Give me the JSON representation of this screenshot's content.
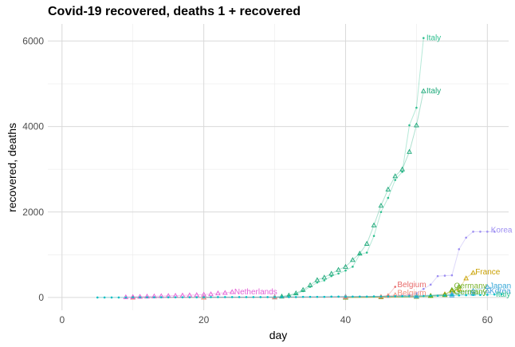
{
  "chart_data": {
    "type": "line",
    "title": "Covid-19 recovered, deaths 1 + recovered",
    "xlabel": "day",
    "ylabel": "recovered, deaths",
    "xlim": [
      -2,
      63
    ],
    "ylim": [
      -300,
      6400
    ],
    "x_ticks": [
      0,
      20,
      40,
      60
    ],
    "y_ticks": [
      0,
      2000,
      4000,
      6000
    ],
    "grid": true,
    "legend": "none",
    "series": [
      {
        "name": "Italy",
        "metric": "recovered",
        "color": "#2ebf8f",
        "marker": "point",
        "x": [
          30,
          31,
          32,
          33,
          34,
          35,
          36,
          37,
          38,
          39,
          40,
          41,
          42,
          43,
          44,
          45,
          46,
          47,
          48,
          49,
          50,
          51
        ],
        "y": [
          2,
          20,
          40,
          80,
          150,
          250,
          350,
          400,
          500,
          560,
          630,
          720,
          1010,
          1050,
          1440,
          2000,
          2330,
          2750,
          2940,
          4030,
          4440,
          6070
        ]
      },
      {
        "name": "Italy",
        "metric": "deaths + recovered",
        "color": "#1aa878",
        "marker": "triangle",
        "x": [
          30,
          31,
          32,
          33,
          34,
          35,
          36,
          37,
          38,
          39,
          40,
          41,
          42,
          43,
          44,
          45,
          46,
          47,
          48,
          49,
          50,
          51
        ],
        "y": [
          5,
          25,
          50,
          100,
          180,
          290,
          410,
          470,
          560,
          650,
          720,
          880,
          1030,
          1260,
          1690,
          2150,
          2530,
          2840,
          3000,
          3410,
          4030,
          4830
        ]
      },
      {
        "name": "Korea",
        "metric": "recovered",
        "color": "#9d8ef2",
        "marker": "point",
        "x": [
          46,
          47,
          48,
          49,
          50,
          51,
          52,
          53,
          54,
          55,
          56,
          57,
          58,
          59,
          60,
          61
        ],
        "y": [
          20,
          30,
          40,
          60,
          100,
          200,
          300,
          500,
          510,
          520,
          1130,
          1400,
          1540,
          1540,
          1540,
          1540
        ]
      },
      {
        "name": "France",
        "metric": "deaths + recovered",
        "color": "#c9a000",
        "marker": "triangle",
        "x": [
          40,
          45,
          50,
          52,
          54,
          55,
          56,
          57,
          58
        ],
        "y": [
          0,
          10,
          20,
          40,
          80,
          150,
          200,
          450,
          580
        ]
      },
      {
        "name": "Germany",
        "metric": "recovered",
        "color": "#7bb32e",
        "marker": "point",
        "x": [
          40,
          45,
          50,
          52,
          54,
          55,
          56
        ],
        "y": [
          0,
          5,
          10,
          20,
          40,
          80,
          150
        ]
      },
      {
        "name": "Germany",
        "metric": "deaths + recovered",
        "color": "#56a810",
        "marker": "triangle",
        "x": [
          40,
          45,
          50,
          52,
          54,
          55,
          56
        ],
        "y": [
          0,
          10,
          20,
          40,
          60,
          180,
          260
        ]
      },
      {
        "name": "Japan",
        "metric": "deaths + recovered",
        "color": "#38a8d8",
        "marker": "triangle",
        "x": [
          20,
          30,
          40,
          50,
          55,
          58,
          60
        ],
        "y": [
          0,
          10,
          20,
          40,
          80,
          160,
          250
        ]
      },
      {
        "name": "Korea",
        "metric": "deaths + recovered",
        "color": "#4aa3df",
        "marker": "triangle",
        "x": [
          20,
          30,
          40,
          50,
          55,
          58,
          60
        ],
        "y": [
          0,
          10,
          20,
          30,
          50,
          90,
          150
        ]
      },
      {
        "name": "Belgium",
        "metric": "recovered",
        "color": "#e86a6a",
        "marker": "point",
        "x": [
          10,
          20,
          30,
          40,
          45,
          46,
          47
        ],
        "y": [
          0,
          0,
          5,
          10,
          20,
          50,
          250
        ]
      },
      {
        "name": "Belgium",
        "metric": "deaths + recovered",
        "color": "#f08c78",
        "marker": "triangle",
        "x": [
          10,
          20,
          30,
          40,
          45,
          46,
          47
        ],
        "y": [
          0,
          0,
          5,
          10,
          20,
          40,
          60
        ]
      },
      {
        "name": "Netherlands",
        "metric": "deaths + recovered",
        "color": "#e25fd5",
        "marker": "triangle",
        "x": [
          9,
          10,
          11,
          12,
          13,
          14,
          15,
          16,
          17,
          18,
          19,
          20,
          21,
          22,
          23,
          24
        ],
        "y": [
          10,
          15,
          20,
          25,
          30,
          35,
          40,
          45,
          50,
          55,
          60,
          70,
          80,
          100,
          110,
          130
        ]
      },
      {
        "name": "",
        "metric": "baseline",
        "color": "#00bfc4",
        "marker": "point",
        "x": [
          5,
          6,
          7,
          8,
          9,
          10,
          11,
          12,
          13,
          14,
          15,
          16,
          17,
          18,
          19,
          20,
          21,
          22,
          23,
          24,
          25,
          26,
          27,
          28,
          29,
          30,
          31,
          32,
          33,
          34,
          35,
          36,
          37,
          38,
          39,
          40,
          41,
          42,
          43,
          44,
          45,
          46,
          47,
          48,
          49,
          50,
          51,
          52,
          53,
          54,
          55,
          56,
          57,
          58,
          59,
          60,
          61,
          62
        ],
        "y": [
          0,
          0,
          0,
          0,
          0,
          5,
          5,
          5,
          5,
          5,
          5,
          5,
          5,
          5,
          5,
          5,
          10,
          10,
          10,
          10,
          10,
          10,
          10,
          10,
          10,
          10,
          10,
          10,
          10,
          15,
          15,
          15,
          15,
          20,
          20,
          20,
          20,
          20,
          20,
          25,
          25,
          25,
          30,
          30,
          30,
          35,
          35,
          40,
          40,
          45,
          50,
          50,
          55,
          60,
          60,
          65,
          70,
          75
        ]
      }
    ],
    "annotations": [
      {
        "text": "Italy",
        "x": 51.4,
        "y": 6070,
        "color": "#2ebf8f"
      },
      {
        "text": "Italy",
        "x": 51.4,
        "y": 4830,
        "color": "#1aa878"
      },
      {
        "text": "Korea",
        "x": 60.5,
        "y": 1580,
        "color": "#9d8ef2"
      },
      {
        "text": "France",
        "x": 58.3,
        "y": 600,
        "color": "#c9a000"
      },
      {
        "text": "Germany",
        "x": 55.3,
        "y": 270,
        "color": "#7bb32e"
      },
      {
        "text": "Japan",
        "x": 60.3,
        "y": 270,
        "color": "#38a8d8"
      },
      {
        "text": "Korea",
        "x": 60.3,
        "y": 150,
        "color": "#4aa3df"
      },
      {
        "text": "Germany",
        "x": 55.3,
        "y": 130,
        "color": "#56a810"
      },
      {
        "text": "Belgium",
        "x": 47.3,
        "y": 300,
        "color": "#e86a6a"
      },
      {
        "text": "Belgium",
        "x": 47.3,
        "y": 100,
        "color": "#f08c78"
      },
      {
        "text": "Netherlands",
        "x": 24.3,
        "y": 130,
        "color": "#e25fd5"
      },
      {
        "text": "Italy",
        "x": 61.2,
        "y": 70,
        "color": "#2ebf8f"
      }
    ]
  }
}
